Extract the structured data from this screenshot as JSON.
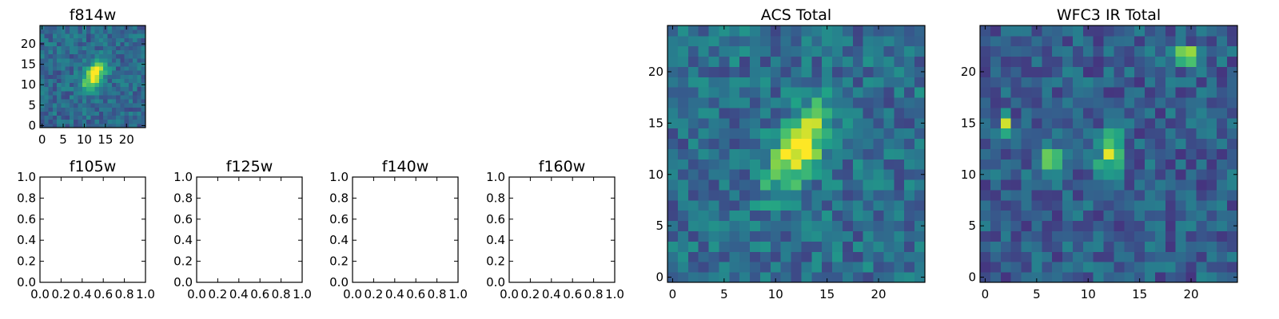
{
  "figure": {
    "colormap": "viridis",
    "colormap_stops": [
      "#440154",
      "#46327e",
      "#365c8d",
      "#277f8e",
      "#1fa187",
      "#4ac16d",
      "#a0da39",
      "#fde725"
    ]
  },
  "chart_data": [
    {
      "id": "f814w",
      "type": "heatmap",
      "title": "f814w",
      "xlim": [
        -0.5,
        24.5
      ],
      "ylim": [
        -0.5,
        24.5
      ],
      "xticks": [
        0,
        5,
        10,
        15,
        20
      ],
      "yticks": [
        0,
        5,
        10,
        15,
        20
      ],
      "grid_size": [
        25,
        25
      ],
      "noise_seed": 11,
      "noise_amplitude": 0.13,
      "noise_baseline": 0.34,
      "sources": [
        {
          "x": 12.5,
          "y": 12.5,
          "amplitude": 0.68,
          "sigma_major": 3.0,
          "sigma_minor": 1.5,
          "angle_deg": 60
        }
      ]
    },
    {
      "id": "f105w",
      "type": "empty",
      "title": "f105w",
      "xlim": [
        0,
        1
      ],
      "ylim": [
        0,
        1
      ],
      "xticks": [
        "0.0",
        "0.2",
        "0.4",
        "0.6",
        "0.8",
        "1.0"
      ],
      "yticks": [
        "0.0",
        "0.2",
        "0.4",
        "0.6",
        "0.8",
        "1.0"
      ]
    },
    {
      "id": "f125w",
      "type": "empty",
      "title": "f125w",
      "xlim": [
        0,
        1
      ],
      "ylim": [
        0,
        1
      ],
      "xticks": [
        "0.0",
        "0.2",
        "0.4",
        "0.6",
        "0.8",
        "1.0"
      ],
      "yticks": [
        "0.0",
        "0.2",
        "0.4",
        "0.6",
        "0.8",
        "1.0"
      ]
    },
    {
      "id": "f140w",
      "type": "empty",
      "title": "f140w",
      "xlim": [
        0,
        1
      ],
      "ylim": [
        0,
        1
      ],
      "xticks": [
        "0.0",
        "0.2",
        "0.4",
        "0.6",
        "0.8",
        "1.0"
      ],
      "yticks": [
        "0.0",
        "0.2",
        "0.4",
        "0.6",
        "0.8",
        "1.0"
      ]
    },
    {
      "id": "f160w",
      "type": "empty",
      "title": "f160w",
      "xlim": [
        0,
        1
      ],
      "ylim": [
        0,
        1
      ],
      "xticks": [
        "0.0",
        "0.2",
        "0.4",
        "0.6",
        "0.8",
        "1.0"
      ],
      "yticks": [
        "0.0",
        "0.2",
        "0.4",
        "0.6",
        "0.8",
        "1.0"
      ]
    },
    {
      "id": "acs-total",
      "type": "heatmap",
      "title": "ACS Total",
      "xlim": [
        -0.5,
        24.5
      ],
      "ylim": [
        -0.5,
        24.5
      ],
      "xticks": [
        0,
        5,
        10,
        15,
        20
      ],
      "yticks": [
        0,
        5,
        10,
        15,
        20
      ],
      "grid_size": [
        25,
        25
      ],
      "noise_seed": 23,
      "noise_amplitude": 0.16,
      "noise_baseline": 0.36,
      "sources": [
        {
          "x": 12.3,
          "y": 12.6,
          "amplitude": 0.68,
          "sigma_major": 3.1,
          "sigma_minor": 1.5,
          "angle_deg": 60
        }
      ]
    },
    {
      "id": "wfc3-ir-total",
      "type": "heatmap",
      "title": "WFC3 IR Total",
      "xlim": [
        -0.5,
        24.5
      ],
      "ylim": [
        -0.5,
        24.5
      ],
      "xticks": [
        0,
        5,
        10,
        15,
        20
      ],
      "yticks": [
        0,
        5,
        10,
        15,
        20
      ],
      "grid_size": [
        25,
        25
      ],
      "noise_seed": 47,
      "noise_amplitude": 0.15,
      "noise_baseline": 0.3,
      "sources": [
        {
          "x": 19.5,
          "y": 21.5,
          "amplitude": 0.75,
          "sigma_major": 0.7,
          "sigma_minor": 0.6,
          "angle_deg": 0
        },
        {
          "x": 6.5,
          "y": 11.5,
          "amplitude": 0.62,
          "sigma_major": 0.75,
          "sigma_minor": 0.65,
          "angle_deg": 0
        },
        {
          "x": 12.2,
          "y": 12.3,
          "amplitude": 0.55,
          "sigma_major": 1.8,
          "sigma_minor": 0.8,
          "angle_deg": 80
        },
        {
          "x": 2.0,
          "y": 14.6,
          "amplitude": 0.62,
          "sigma_major": 0.7,
          "sigma_minor": 0.5,
          "angle_deg": 90
        }
      ]
    }
  ]
}
